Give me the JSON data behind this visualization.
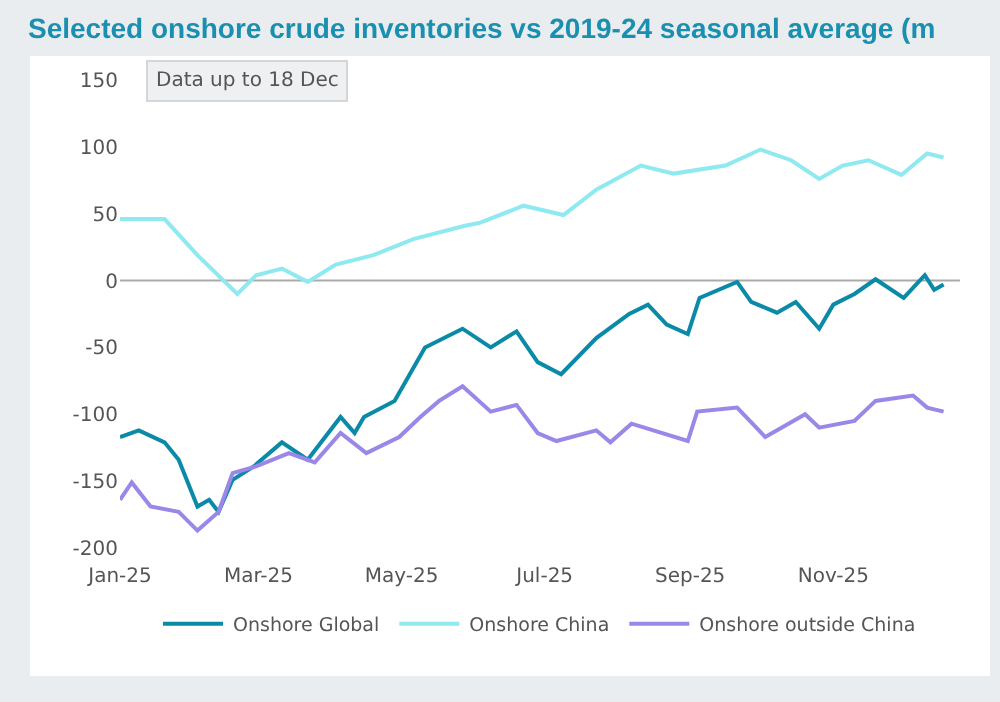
{
  "chart_data": {
    "type": "line",
    "title": "Selected onshore crude inventories vs 2019-24 seasonal average (m",
    "annotations": [
      "Data up to 18 Dec"
    ],
    "xlim": [
      "2025-01-01",
      "2025-12-25"
    ],
    "xticks": [
      {
        "value": "2025-01-01",
        "label": "Jan-25"
      },
      {
        "value": "2025-03-01",
        "label": "Mar-25"
      },
      {
        "value": "2025-05-01",
        "label": "May-25"
      },
      {
        "value": "2025-07-01",
        "label": "Jul-25"
      },
      {
        "value": "2025-09-01",
        "label": "Sep-25"
      },
      {
        "value": "2025-11-01",
        "label": "Nov-25"
      }
    ],
    "ylim": [
      -200,
      150
    ],
    "yticks": [
      -200,
      -150,
      -100,
      -50,
      0,
      50,
      100,
      150
    ],
    "ref_lines": [
      {
        "axis": "y",
        "value": 0,
        "color": "#aaaaaa"
      }
    ],
    "grid": false,
    "legend": "bottom",
    "marker": "none",
    "line_style": "solid",
    "series": [
      {
        "name": "Onshore Global",
        "color": "#0b8aa8",
        "x": [
          "2025-01-01",
          "2025-01-09",
          "2025-01-20",
          "2025-01-26",
          "2025-02-03",
          "2025-02-08",
          "2025-02-12",
          "2025-02-18",
          "2025-02-27",
          "2025-03-11",
          "2025-03-22",
          "2025-04-05",
          "2025-04-11",
          "2025-04-15",
          "2025-04-28",
          "2025-05-11",
          "2025-05-27",
          "2025-06-08",
          "2025-06-19",
          "2025-06-28",
          "2025-07-08",
          "2025-07-23",
          "2025-08-06",
          "2025-08-14",
          "2025-08-22",
          "2025-08-31",
          "2025-09-05",
          "2025-09-21",
          "2025-09-27",
          "2025-10-08",
          "2025-10-16",
          "2025-10-26",
          "2025-11-01",
          "2025-11-10",
          "2025-11-19",
          "2025-12-01",
          "2025-12-10",
          "2025-12-14",
          "2025-12-18"
        ],
        "values": [
          -117,
          -112,
          -121,
          -134,
          -169,
          -164,
          -173,
          -149,
          -139,
          -121,
          -134,
          -102,
          -114,
          -102,
          -90,
          -50,
          -36,
          -50,
          -38,
          -61,
          -70,
          -43,
          -25,
          -18,
          -33,
          -40,
          -13,
          -1,
          -16,
          -24,
          -16,
          -36,
          -18,
          -10,
          1,
          -13,
          4,
          -7,
          -3
        ]
      },
      {
        "name": "Onshore China",
        "color": "#8ee9f0",
        "x": [
          "2025-01-01",
          "2025-01-20",
          "2025-02-03",
          "2025-02-20",
          "2025-02-28",
          "2025-03-11",
          "2025-03-22",
          "2025-04-03",
          "2025-04-19",
          "2025-05-06",
          "2025-05-28",
          "2025-06-03",
          "2025-06-22",
          "2025-07-09",
          "2025-07-23",
          "2025-08-11",
          "2025-08-25",
          "2025-09-16",
          "2025-10-01",
          "2025-10-14",
          "2025-10-26",
          "2025-11-05",
          "2025-11-16",
          "2025-11-30",
          "2025-12-11",
          "2025-12-18"
        ],
        "values": [
          46,
          46,
          19,
          -10,
          4,
          9,
          -1,
          12,
          19,
          31,
          41,
          43,
          56,
          49,
          68,
          86,
          80,
          86,
          98,
          90,
          76,
          86,
          90,
          79,
          95,
          92
        ]
      },
      {
        "name": "Onshore outside China",
        "color": "#9b87e8",
        "x": [
          "2025-01-01",
          "2025-01-06",
          "2025-01-14",
          "2025-01-26",
          "2025-02-03",
          "2025-02-12",
          "2025-02-18",
          "2025-02-28",
          "2025-03-14",
          "2025-03-25",
          "2025-04-05",
          "2025-04-16",
          "2025-04-30",
          "2025-05-09",
          "2025-05-17",
          "2025-05-27",
          "2025-06-08",
          "2025-06-19",
          "2025-06-28",
          "2025-07-06",
          "2025-07-23",
          "2025-07-29",
          "2025-08-07",
          "2025-08-31",
          "2025-09-04",
          "2025-09-21",
          "2025-10-03",
          "2025-10-20",
          "2025-10-26",
          "2025-11-10",
          "2025-11-19",
          "2025-12-05",
          "2025-12-11",
          "2025-12-18"
        ],
        "values": [
          -164,
          -151,
          -169,
          -173,
          -187,
          -173,
          -144,
          -139,
          -129,
          -136,
          -114,
          -129,
          -117,
          -102,
          -90,
          -79,
          -98,
          -93,
          -114,
          -120,
          -112,
          -121,
          -107,
          -120,
          -98,
          -95,
          -117,
          -100,
          -110,
          -105,
          -90,
          -86,
          -95,
          -98
        ]
      }
    ]
  }
}
